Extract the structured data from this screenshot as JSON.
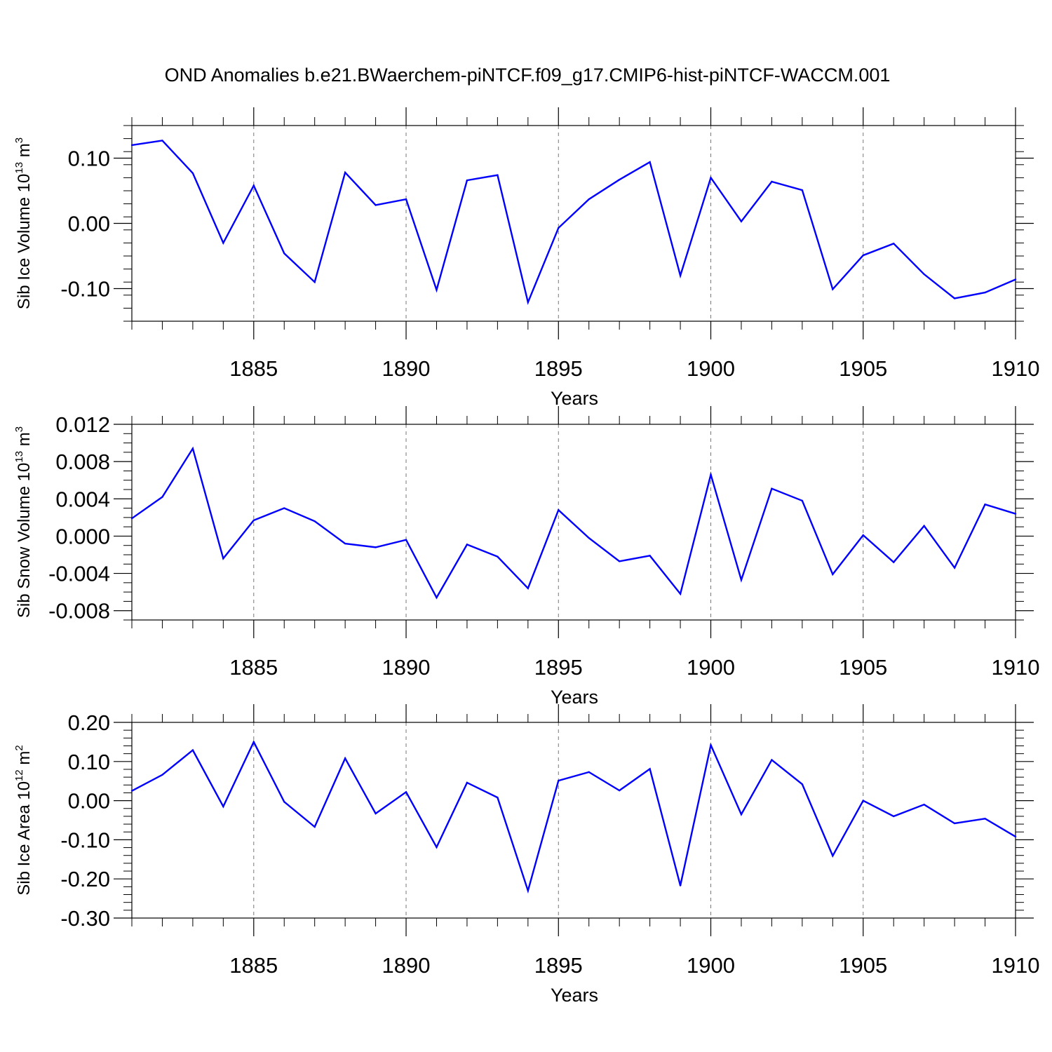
{
  "chart_data": {
    "title": "OND Anomalies b.e21.BWaerchem-piNTCF.f09_g17.CMIP6-hist-piNTCF-WACCM.001",
    "line_color": "#0000ff",
    "years": [
      1881,
      1882,
      1883,
      1884,
      1885,
      1886,
      1887,
      1888,
      1889,
      1890,
      1891,
      1892,
      1893,
      1894,
      1895,
      1896,
      1897,
      1898,
      1899,
      1900,
      1901,
      1902,
      1903,
      1904,
      1905,
      1906,
      1907,
      1908,
      1909,
      1910
    ],
    "panels": [
      {
        "type": "line",
        "name": "ice-volume",
        "ylabel": "Sib Ice Volume 10",
        "yunit_exp": "13",
        "yunit": "m",
        "yunit_pow": "3",
        "xlabel": "Years",
        "xlim": [
          1881,
          1910
        ],
        "ylim": [
          -0.15,
          0.15
        ],
        "yticks": [
          -0.1,
          0.0,
          0.1
        ],
        "ytick_labels": [
          "-0.10",
          "0.00",
          "0.10"
        ],
        "yminor_step": 0.02,
        "xticks": [
          1885,
          1890,
          1895,
          1900,
          1905,
          1910
        ],
        "xtick_labels": [
          "1885",
          "1890",
          "1895",
          "1900",
          "1905",
          "1910"
        ],
        "values": [
          0.12,
          0.127,
          0.077,
          -0.03,
          0.058,
          -0.046,
          -0.09,
          0.078,
          0.028,
          0.037,
          -0.102,
          0.066,
          0.074,
          -0.121,
          -0.007,
          0.037,
          0.067,
          0.094,
          -0.08,
          0.07,
          0.003,
          0.064,
          0.051,
          -0.101,
          -0.049,
          -0.031,
          -0.078,
          -0.115,
          -0.106,
          -0.086
        ]
      },
      {
        "type": "line",
        "name": "snow-volume",
        "ylabel": "Sib Snow Volume 10",
        "yunit_exp": "13",
        "yunit": "m",
        "yunit_pow": "3",
        "xlabel": "Years",
        "xlim": [
          1881,
          1910
        ],
        "ylim": [
          -0.009,
          0.012
        ],
        "yticks": [
          -0.008,
          -0.004,
          0.0,
          0.004,
          0.008,
          0.012
        ],
        "ytick_labels": [
          "-0.008",
          "-0.004",
          "0.000",
          "0.004",
          "0.008",
          "0.012"
        ],
        "yminor_step": 0.001,
        "xticks": [
          1885,
          1890,
          1895,
          1900,
          1905,
          1910
        ],
        "xtick_labels": [
          "1885",
          "1890",
          "1895",
          "1900",
          "1905",
          "1910"
        ],
        "values": [
          0.0019,
          0.0042,
          0.0094,
          -0.0024,
          0.0017,
          0.003,
          0.0016,
          -0.0008,
          -0.0012,
          -0.0004,
          -0.0066,
          -0.0009,
          -0.0022,
          -0.0056,
          0.0028,
          -0.0002,
          -0.0027,
          -0.0021,
          -0.0062,
          0.0066,
          -0.0047,
          0.0051,
          0.0038,
          -0.0041,
          0.0001,
          -0.0028,
          0.0011,
          -0.0034,
          0.0034,
          0.0024
        ]
      },
      {
        "type": "line",
        "name": "ice-area",
        "ylabel": "Sib Ice Area 10",
        "yunit_exp": "12",
        "yunit": "m",
        "yunit_pow": "2",
        "xlabel": "Years",
        "xlim": [
          1881,
          1910
        ],
        "ylim": [
          -0.3,
          0.2
        ],
        "yticks": [
          -0.3,
          -0.2,
          -0.1,
          0.0,
          0.1,
          0.2
        ],
        "ytick_labels": [
          "-0.30",
          "-0.20",
          "-0.10",
          "0.00",
          "0.10",
          "0.20"
        ],
        "yminor_step": 0.02,
        "xticks": [
          1885,
          1890,
          1895,
          1900,
          1905,
          1910
        ],
        "xtick_labels": [
          "1885",
          "1890",
          "1895",
          "1900",
          "1905",
          "1910"
        ],
        "values": [
          0.025,
          0.066,
          0.129,
          -0.015,
          0.15,
          -0.003,
          -0.067,
          0.108,
          -0.033,
          0.022,
          -0.119,
          0.046,
          0.008,
          -0.23,
          0.051,
          0.073,
          0.026,
          0.081,
          -0.217,
          0.142,
          -0.035,
          0.104,
          0.042,
          -0.141,
          0.0,
          -0.04,
          -0.01,
          -0.058,
          -0.046,
          -0.092
        ]
      }
    ]
  }
}
